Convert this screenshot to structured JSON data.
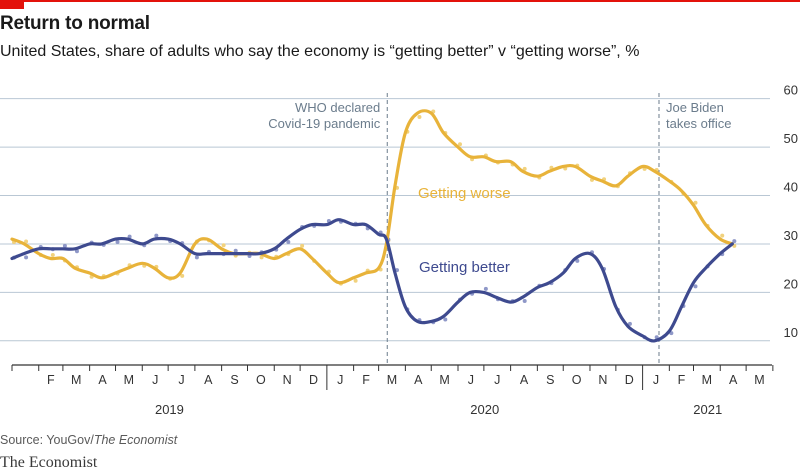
{
  "header": {
    "title": "Return to normal",
    "subtitle": "United States, share of adults who say the economy is “getting better” v “getting worse”, %"
  },
  "footer": {
    "source_prefix": "Source: YouGov/",
    "source_italic": "The Economist",
    "brand": "The Economist"
  },
  "colors": {
    "worse": "#e8b33a",
    "worse_dots": "#f1d27e",
    "better": "#3e4a8f",
    "better_dots": "#8f98c8",
    "grid": "#b9c7d4",
    "axis": "#333333",
    "annotation": "#6b7c8c"
  },
  "chart_data": {
    "type": "line",
    "title": "Return to normal",
    "subtitle": "United States, share of adults who say the economy is “getting better” v “getting worse”, %",
    "ylim": [
      5,
      62
    ],
    "y_ticks": [
      10,
      20,
      30,
      40,
      50,
      60
    ],
    "x_range": [
      "2019-01-01",
      "2021-05-31"
    ],
    "x_tick_labels": [
      "F",
      "M",
      "A",
      "M",
      "J",
      "J",
      "A",
      "S",
      "O",
      "N",
      "D",
      "J",
      "F",
      "M",
      "A",
      "M",
      "J",
      "J",
      "A",
      "S",
      "O",
      "N",
      "D",
      "J",
      "F",
      "M",
      "A",
      "M"
    ],
    "year_labels": [
      "2019",
      "2020",
      "2021"
    ],
    "grid": "horizontal",
    "annotations": [
      {
        "date": "2020-03-11",
        "lines": [
          "WHO declared",
          "Covid-19 pandemic"
        ]
      },
      {
        "date": "2021-01-20",
        "lines": [
          "Joe Biden",
          "takes office"
        ]
      }
    ],
    "series": [
      {
        "name": "Getting worse",
        "x": [
          "2019-01-01",
          "2019-01-15",
          "2019-02-01",
          "2019-02-15",
          "2019-03-01",
          "2019-03-15",
          "2019-04-01",
          "2019-04-15",
          "2019-05-01",
          "2019-05-15",
          "2019-06-01",
          "2019-06-15",
          "2019-07-01",
          "2019-07-15",
          "2019-08-01",
          "2019-08-15",
          "2019-09-01",
          "2019-09-15",
          "2019-10-01",
          "2019-10-15",
          "2019-11-01",
          "2019-11-15",
          "2019-12-01",
          "2019-12-15",
          "2020-01-01",
          "2020-01-15",
          "2020-02-01",
          "2020-02-15",
          "2020-03-01",
          "2020-03-10",
          "2020-03-20",
          "2020-04-01",
          "2020-04-15",
          "2020-05-01",
          "2020-05-15",
          "2020-06-01",
          "2020-06-15",
          "2020-07-01",
          "2020-07-15",
          "2020-08-01",
          "2020-08-15",
          "2020-09-01",
          "2020-09-15",
          "2020-10-01",
          "2020-10-15",
          "2020-11-01",
          "2020-11-15",
          "2020-12-01",
          "2020-12-15",
          "2021-01-01",
          "2021-01-15",
          "2021-02-01",
          "2021-02-15",
          "2021-03-01",
          "2021-03-15",
          "2021-04-01",
          "2021-04-15"
        ],
        "y": [
          31,
          30,
          28,
          27,
          27,
          25,
          24,
          23,
          24,
          25,
          26,
          25,
          23,
          24,
          30,
          31,
          29,
          28,
          28,
          28,
          27,
          28,
          29,
          27,
          24,
          22,
          23,
          24,
          25,
          30,
          42,
          53,
          57,
          57,
          53,
          50,
          48,
          48,
          47,
          47,
          45,
          44,
          45,
          46,
          46,
          44,
          43,
          42,
          44,
          46,
          45,
          43,
          41,
          38,
          34,
          31,
          30
        ]
      },
      {
        "name": "Getting better",
        "x": [
          "2019-01-01",
          "2019-01-15",
          "2019-02-01",
          "2019-02-15",
          "2019-03-01",
          "2019-03-15",
          "2019-04-01",
          "2019-04-15",
          "2019-05-01",
          "2019-05-15",
          "2019-06-01",
          "2019-06-15",
          "2019-07-01",
          "2019-07-15",
          "2019-08-01",
          "2019-08-15",
          "2019-09-01",
          "2019-09-15",
          "2019-10-01",
          "2019-10-15",
          "2019-11-01",
          "2019-11-15",
          "2019-12-01",
          "2019-12-15",
          "2020-01-01",
          "2020-01-15",
          "2020-02-01",
          "2020-02-15",
          "2020-03-01",
          "2020-03-10",
          "2020-03-20",
          "2020-04-01",
          "2020-04-15",
          "2020-05-01",
          "2020-05-15",
          "2020-06-01",
          "2020-06-15",
          "2020-07-01",
          "2020-07-15",
          "2020-08-01",
          "2020-08-15",
          "2020-09-01",
          "2020-09-15",
          "2020-10-01",
          "2020-10-15",
          "2020-11-01",
          "2020-11-15",
          "2020-12-01",
          "2020-12-15",
          "2021-01-01",
          "2021-01-15",
          "2021-02-01",
          "2021-02-15",
          "2021-03-01",
          "2021-03-15",
          "2021-04-01",
          "2021-04-15"
        ],
        "y": [
          27,
          28,
          29,
          29,
          29,
          29,
          30,
          30,
          31,
          31,
          30,
          31,
          31,
          30,
          28,
          28,
          28,
          28,
          28,
          28,
          29,
          31,
          33,
          34,
          34,
          35,
          34,
          34,
          32,
          31,
          24,
          17,
          14,
          14,
          15,
          18,
          20,
          20,
          19,
          18,
          19,
          21,
          22,
          24,
          27,
          28,
          25,
          17,
          13,
          11,
          10,
          12,
          17,
          22,
          25,
          28,
          30
        ]
      }
    ]
  }
}
